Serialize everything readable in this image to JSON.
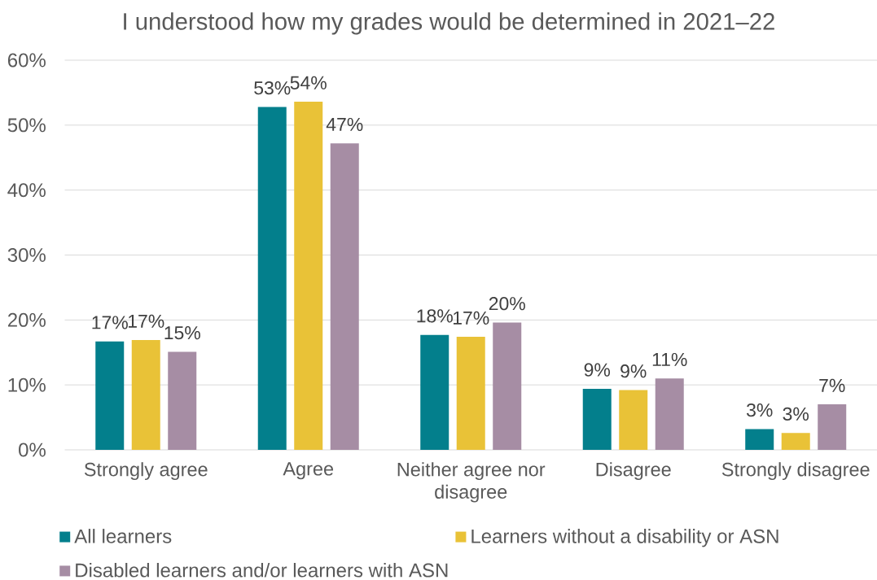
{
  "chart_data": {
    "type": "bar",
    "title": "I understood how my grades would be determined in 2021–22",
    "categories": [
      "Strongly agree",
      "Agree",
      "Neither agree nor disagree",
      "Disagree",
      "Strongly disagree"
    ],
    "series": [
      {
        "name": "All learners",
        "color": "#037f8c",
        "values": [
          16.7,
          52.8,
          17.7,
          9.4,
          3.2
        ],
        "value_labels": [
          "17%",
          "53%",
          "18%",
          "9%",
          "3%"
        ]
      },
      {
        "name": "Learners without a disability or ASN",
        "color": "#e9c237",
        "values": [
          16.9,
          53.6,
          17.4,
          9.2,
          2.6
        ],
        "value_labels": [
          "17%",
          "54%",
          "17%",
          "9%",
          "3%"
        ]
      },
      {
        "name": "Disabled learners and/or learners with ASN",
        "color": "#a68da4",
        "values": [
          15.1,
          47.2,
          19.6,
          11.0,
          7.0
        ],
        "value_labels": [
          "15%",
          "47%",
          "20%",
          "11%",
          "7%"
        ]
      }
    ],
    "ylim": [
      0,
      60
    ],
    "yticks": [
      {
        "value": 0,
        "label": "0%"
      },
      {
        "value": 10,
        "label": "10%"
      },
      {
        "value": 20,
        "label": "20%"
      },
      {
        "value": 30,
        "label": "30%"
      },
      {
        "value": 40,
        "label": "40%"
      },
      {
        "value": 50,
        "label": "50%"
      },
      {
        "value": 60,
        "label": "60%"
      }
    ],
    "grid": "y",
    "legend": "bottom"
  }
}
